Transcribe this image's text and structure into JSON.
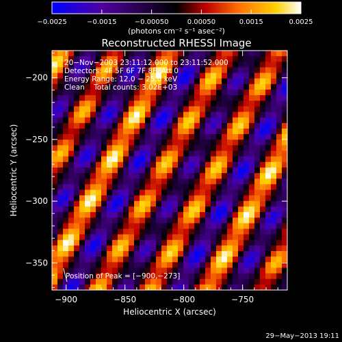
{
  "chart_data": {
    "type": "heatmap",
    "title": "Reconstructed RHESSI Image",
    "xlabel": "Heliocentric X (arcsec)",
    "ylabel": "Heliocentric Y (arcsec)",
    "xlim": [
      -912,
      -712
    ],
    "ylim": [
      -372,
      -178
    ],
    "x_ticks": [
      -900,
      -850,
      -800,
      -750
    ],
    "x_tick_labels": [
      "−900",
      "−850",
      "−800",
      "−750"
    ],
    "y_ticks": [
      -350,
      -300,
      -250,
      -200
    ],
    "y_tick_labels": [
      "−350",
      "−300",
      "−250",
      "−200"
    ],
    "colorbar": {
      "range": [
        -0.0025,
        0.0025
      ],
      "ticks": [
        -0.0025,
        -0.0015,
        -0.0005,
        0.0005,
        0.0015,
        0.0025
      ],
      "tick_labels": [
        "−0.0025",
        "−0.0015",
        "−0.00050",
        "0.00050",
        "0.0015",
        "0.0025"
      ],
      "units_label": "(photons cm⁻² s⁻¹ asec⁻²)",
      "colors": [
        "#0000ff",
        "#5000a0",
        "#000000",
        "#c00000",
        "#ff7000",
        "#ffd000",
        "#ffffff"
      ]
    },
    "annotations": [
      "20−Nov−2003 23:11:12.000 to 23:11:52.000",
      "Detectors: 4F 5F 6F 7F 8F, Att 0",
      "Energy Range: 12.0 − 25.0 keV",
      "Clean    Total counts: 3.02E+03"
    ],
    "peak_label": "Position of Peak = [−900,−273]",
    "peak": [
      -900,
      -273
    ],
    "grid": false
  },
  "footer_timestamp": "29−May−2013 19:11"
}
